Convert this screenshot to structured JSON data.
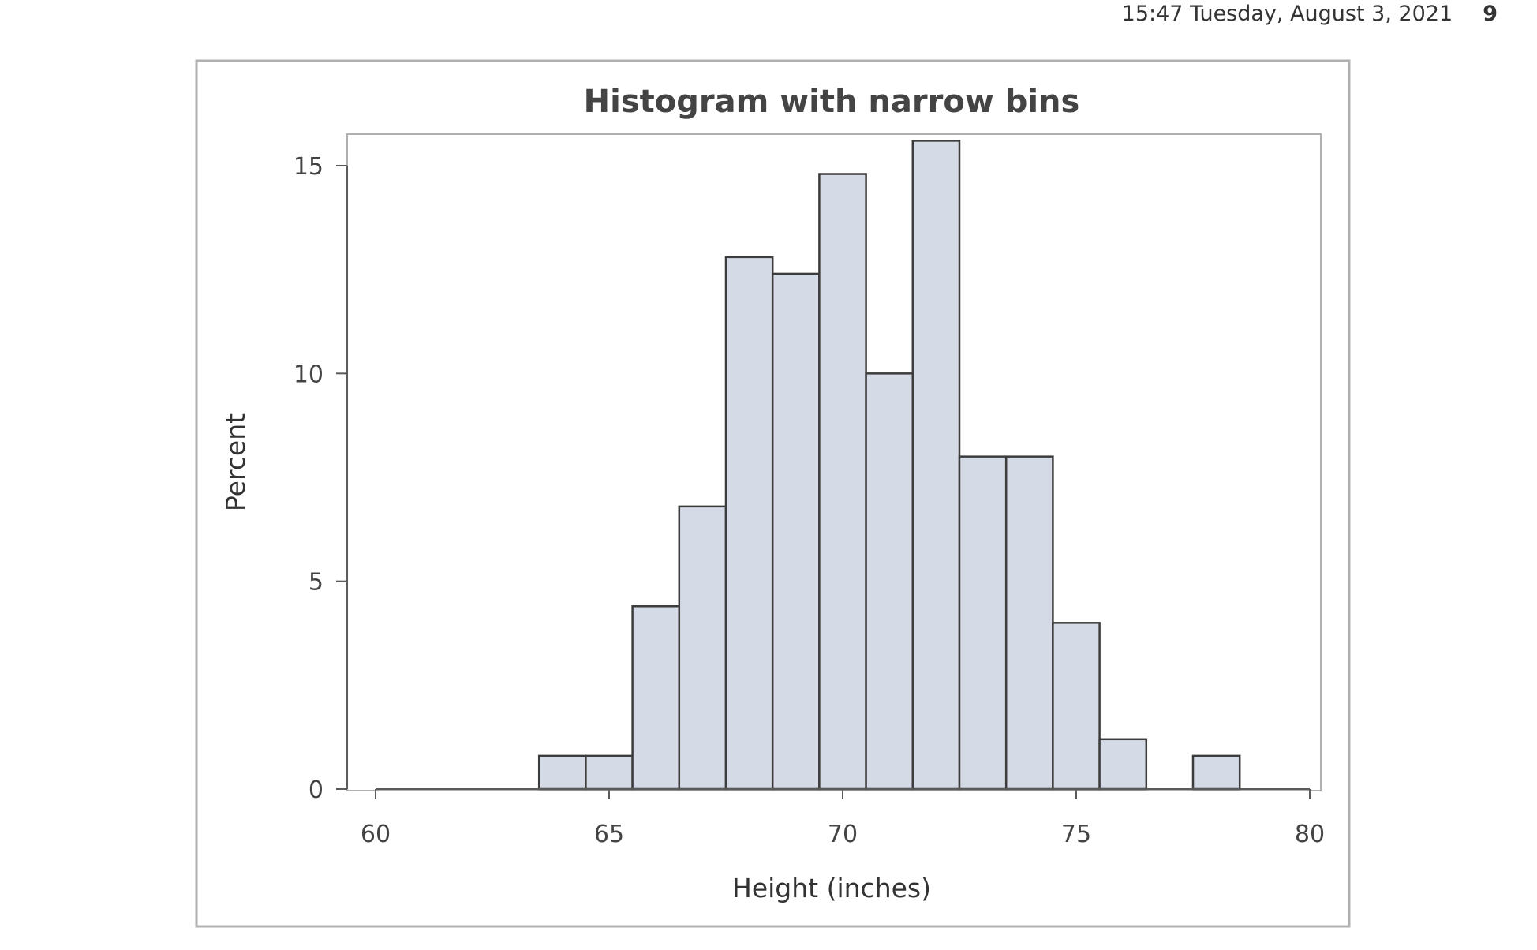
{
  "header": {
    "datetime": "15:47 Tuesday, August 3, 2021",
    "page_number": "9"
  },
  "colors": {
    "bar_fill": "#d4dbe7",
    "bar_stroke": "#3c3c3c",
    "frame": "#b0b0b0",
    "axis": "#5a5a5a",
    "text": "#333333"
  },
  "chart_data": {
    "type": "bar",
    "title": "Histogram with narrow bins",
    "xlabel": "Height (inches)",
    "ylabel": "Percent",
    "xlim": [
      60,
      80
    ],
    "ylim": [
      0,
      15
    ],
    "x_ticks": [
      60,
      65,
      70,
      75,
      80
    ],
    "y_ticks": [
      0,
      5,
      10,
      15
    ],
    "bin_width": 1,
    "bins": [
      {
        "start": 63.5,
        "end": 64.5,
        "value": 0.8
      },
      {
        "start": 64.5,
        "end": 65.5,
        "value": 0.8
      },
      {
        "start": 65.5,
        "end": 66.5,
        "value": 4.4
      },
      {
        "start": 66.5,
        "end": 67.5,
        "value": 6.8
      },
      {
        "start": 67.5,
        "end": 68.5,
        "value": 12.8
      },
      {
        "start": 68.5,
        "end": 69.5,
        "value": 12.4
      },
      {
        "start": 69.5,
        "end": 70.5,
        "value": 14.8
      },
      {
        "start": 70.5,
        "end": 71.5,
        "value": 10.0
      },
      {
        "start": 71.5,
        "end": 72.5,
        "value": 15.6
      },
      {
        "start": 72.5,
        "end": 73.5,
        "value": 8.0
      },
      {
        "start": 73.5,
        "end": 74.5,
        "value": 8.0
      },
      {
        "start": 74.5,
        "end": 75.5,
        "value": 4.0
      },
      {
        "start": 75.5,
        "end": 76.5,
        "value": 1.2
      },
      {
        "start": 77.5,
        "end": 78.5,
        "value": 0.8
      }
    ],
    "grid": false,
    "legend": "none"
  }
}
